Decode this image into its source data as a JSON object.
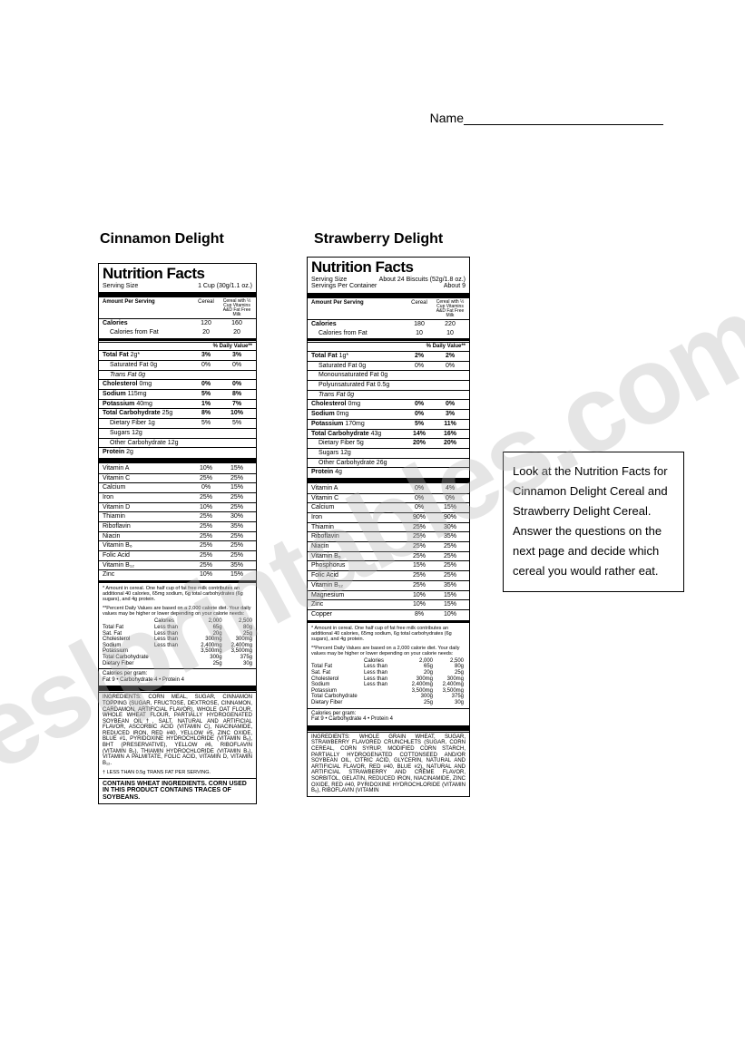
{
  "name_label": "Name",
  "titles": {
    "cinnamon": "Cinnamon Delight",
    "strawberry": "Strawberry Delight"
  },
  "watermark": "eslprintables.com",
  "instruction": "Look at the Nutrition Facts for Cinnamon Delight Cereal and Strawberry Delight Cereal.  Answer the questions on the next page and decide which cereal you would rather eat.",
  "nf_heading": "Nutrition Facts",
  "cinnamon": {
    "serving_size_label": "Serving Size",
    "serving_size": "1 Cup (30g/1.1 oz.)",
    "col_header": "Amount Per Serving",
    "col2": "Cereal",
    "col3": "Cereal with ½ Cup Vitamins A&D Fat Free Milk",
    "calories_label": "Calories",
    "calories_c": "120",
    "calories_m": "160",
    "calfat_label": "Calories from Fat",
    "calfat_c": "20",
    "calfat_m": "20",
    "dv_header": "% Daily Value**",
    "totalfat_label": "Total Fat",
    "totalfat_amt": "2g*",
    "totalfat_c": "3%",
    "totalfat_m": "3%",
    "satfat_label": "Saturated Fat 0g",
    "satfat_c": "0%",
    "satfat_m": "0%",
    "transfat_label": "Trans Fat 0g",
    "chol_label": "Cholesterol",
    "chol_amt": "0mg",
    "chol_c": "0%",
    "chol_m": "0%",
    "sodium_label": "Sodium",
    "sodium_amt": "115mg",
    "sodium_c": "5%",
    "sodium_m": "8%",
    "pot_label": "Potassium",
    "pot_amt": "40mg",
    "pot_c": "1%",
    "pot_m": "7%",
    "carb_label": "Total Carbohydrate",
    "carb_amt": "25g",
    "carb_c": "8%",
    "carb_m": "10%",
    "fiber_label": "Dietary Fiber 1g",
    "fiber_c": "5%",
    "fiber_m": "5%",
    "sugars_label": "Sugars 12g",
    "othercarb_label": "Other Carbohydrate 12g",
    "protein_label": "Protein",
    "protein_amt": "2g",
    "vitamins": [
      {
        "n": "Vitamin A",
        "c": "10%",
        "m": "15%"
      },
      {
        "n": "Vitamin C",
        "c": "25%",
        "m": "25%"
      },
      {
        "n": "Calcium",
        "c": "0%",
        "m": "15%"
      },
      {
        "n": "Iron",
        "c": "25%",
        "m": "25%"
      },
      {
        "n": "Vitamin D",
        "c": "10%",
        "m": "25%"
      },
      {
        "n": "Thiamin",
        "c": "25%",
        "m": "30%"
      },
      {
        "n": "Riboflavin",
        "c": "25%",
        "m": "35%"
      },
      {
        "n": "Niacin",
        "c": "25%",
        "m": "25%"
      },
      {
        "n": "Vitamin B₆",
        "c": "25%",
        "m": "25%"
      },
      {
        "n": "Folic Acid",
        "c": "25%",
        "m": "25%"
      },
      {
        "n": "Vitamin B₁₂",
        "c": "25%",
        "m": "35%"
      },
      {
        "n": "Zinc",
        "c": "10%",
        "m": "15%"
      }
    ],
    "note1": "* Amount in cereal. One half cup of fat free milk contributes an additional 40 calories, 65mg sodium, 6g total carbohydrates (6g sugars), and 4g protein.",
    "note2": "**Percent Daily Values are based on a 2,000 calorie diet. Your daily values may be higher or lower depending on your calorie needs:",
    "cal_table_hdr": {
      "c1": "",
      "c2": "Calories",
      "c3": "2,000",
      "c4": "2,500"
    },
    "cal_table": [
      {
        "c1": "Total Fat",
        "c2": "Less than",
        "c3": "65g",
        "c4": "80g"
      },
      {
        "c1": "Sat. Fat",
        "c2": "Less than",
        "c3": "20g",
        "c4": "25g"
      },
      {
        "c1": "Cholesterol",
        "c2": "Less than",
        "c3": "300mg",
        "c4": "300mg"
      },
      {
        "c1": "Sodium",
        "c2": "Less than",
        "c3": "2,400mg",
        "c4": "2,400mg"
      },
      {
        "c1": "Potassium",
        "c2": "",
        "c3": "3,500mg",
        "c4": "3,500mg"
      },
      {
        "c1": "Total Carbohydrate",
        "c2": "",
        "c3": "300g",
        "c4": "375g"
      },
      {
        "c1": "Dietary Fiber",
        "c2": "",
        "c3": "25g",
        "c4": "30g"
      }
    ],
    "cpg": "Calories per gram:\nFat 9 • Carbohydrate 4 • Protein 4",
    "ingredients": "INGREDIENTS: CORN MEAL, SUGAR, CINNAMON TOPPING (SUGAR, FRUCTOSE, DEXTROSE, CINNAMON, CARDAMON, ARTIFICIAL FLAVOR), WHOLE OAT FLOUR, WHOLE WHEAT FLOUR, PARTIALLY HYDROGENATED SOYBEAN OIL†, SALT, NATURAL AND ARTIFICIAL FLAVOR, ASCORBIC ACID (VITAMIN C), NIACINAMIDE, REDUCED IRON, RED #40, YELLOW #5, ZINC OXIDE, BLUE #1, PYRIDOXINE HYDROCHLORIDE (VITAMIN B₆), BHT (PRESERVATIVE), YELLOW #6, RIBOFLAVIN (VITAMIN B₂), THIAMIN HYDROCHLORIDE (VITAMIN B₁), VITAMIN A PALMITATE, FOLIC ACID, VITAMIN D, VITAMIN B₁₂.",
    "footnote": "† LESS THAN 0.5g TRANS FAT PER SERVING.",
    "contains": "CONTAINS WHEAT INGREDIENTS. CORN USED IN THIS PRODUCT CONTAINS TRACES OF SOYBEANS."
  },
  "strawberry": {
    "serving_size_label": "Serving Size",
    "serving_size": "About 24 Biscuits (52g/1.8 oz.)",
    "servings_per": "Servings Per Container",
    "servings_val": "About 9",
    "col_header": "Amount Per Serving",
    "col2": "Cereal",
    "col3": "Cereal with ½ Cup Vitamins A&D Fat Free Milk",
    "calories_label": "Calories",
    "calories_c": "180",
    "calories_m": "220",
    "calfat_label": "Calories from Fat",
    "calfat_c": "10",
    "calfat_m": "10",
    "dv_header": "% Daily Value**",
    "totalfat_label": "Total Fat",
    "totalfat_amt": "1g*",
    "totalfat_c": "2%",
    "totalfat_m": "2%",
    "satfat_label": "Saturated Fat 0g",
    "satfat_c": "0%",
    "satfat_m": "0%",
    "monofat_label": "Monounsaturated Fat 0g",
    "polyfat_label": "Polyunsaturated Fat 0.5g",
    "transfat_label": "Trans Fat 0g",
    "chol_label": "Cholesterol",
    "chol_amt": "0mg",
    "chol_c": "0%",
    "chol_m": "0%",
    "sodium_label": "Sodium",
    "sodium_amt": "0mg",
    "sodium_c": "0%",
    "sodium_m": "3%",
    "pot_label": "Potassium",
    "pot_amt": "170mg",
    "pot_c": "5%",
    "pot_m": "11%",
    "carb_label": "Total Carbohydrate",
    "carb_amt": "43g",
    "carb_c": "14%",
    "carb_m": "16%",
    "fiber_label": "Dietary Fiber 5g",
    "fiber_c": "20%",
    "fiber_m": "20%",
    "sugars_label": "Sugars 12g",
    "othercarb_label": "Other Carbohydrate 26g",
    "protein_label": "Protein",
    "protein_amt": "4g",
    "vitamins": [
      {
        "n": "Vitamin A",
        "c": "0%",
        "m": "4%"
      },
      {
        "n": "Vitamin C",
        "c": "0%",
        "m": "0%"
      },
      {
        "n": "Calcium",
        "c": "0%",
        "m": "15%"
      },
      {
        "n": "Iron",
        "c": "90%",
        "m": "90%"
      },
      {
        "n": "Thiamin",
        "c": "25%",
        "m": "30%"
      },
      {
        "n": "Riboflavin",
        "c": "25%",
        "m": "35%"
      },
      {
        "n": "Niacin",
        "c": "25%",
        "m": "25%"
      },
      {
        "n": "Vitamin B₆",
        "c": "25%",
        "m": "25%"
      },
      {
        "n": "Phosphorus",
        "c": "15%",
        "m": "25%"
      },
      {
        "n": "Folic Acid",
        "c": "25%",
        "m": "25%"
      },
      {
        "n": "Vitamin B₁₂",
        "c": "25%",
        "m": "35%"
      },
      {
        "n": "Magnesium",
        "c": "10%",
        "m": "15%"
      },
      {
        "n": "Zinc",
        "c": "10%",
        "m": "15%"
      },
      {
        "n": "Copper",
        "c": "8%",
        "m": "10%"
      }
    ],
    "note1": "* Amount in cereal. One half cup of fat free milk contributes an additional 40 calories, 65mg sodium, 6g total carbohydrates (6g sugars), and 4g protein.",
    "note2": "**Percent Daily Values are based on a 2,000 calorie diet. Your daily values may be higher or lower depending on your calorie needs:",
    "cal_table_hdr": {
      "c1": "",
      "c2": "Calories",
      "c3": "2,000",
      "c4": "2,500"
    },
    "cal_table": [
      {
        "c1": "Total Fat",
        "c2": "Less than",
        "c3": "65g",
        "c4": "80g"
      },
      {
        "c1": "Sat. Fat",
        "c2": "Less than",
        "c3": "20g",
        "c4": "25g"
      },
      {
        "c1": "Cholesterol",
        "c2": "Less than",
        "c3": "300mg",
        "c4": "300mg"
      },
      {
        "c1": "Sodium",
        "c2": "Less than",
        "c3": "2,400mg",
        "c4": "2,400mg"
      },
      {
        "c1": "Potassium",
        "c2": "",
        "c3": "3,500mg",
        "c4": "3,500mg"
      },
      {
        "c1": "Total Carbohydrate",
        "c2": "",
        "c3": "300g",
        "c4": "375g"
      },
      {
        "c1": "Dietary Fiber",
        "c2": "",
        "c3": "25g",
        "c4": "30g"
      }
    ],
    "cpg": "Calories per gram:\nFat 9 • Carbohydrate 4 • Protein 4",
    "ingredients": "INGREDIENTS: WHOLE GRAIN WHEAT, SUGAR, STRAWBERRY FLAVORED CRUNCHLETS (SUGAR, CORN CEREAL, CORN SYRUP, MODIFIED CORN STARCH, PARTIALLY HYDROGENATED COTTONSEED AND/OR SOYBEAN OIL, CITRIC ACID, GLYCERIN, NATURAL AND ARTIFICIAL FLAVOR, RED #40, BLUE #2), NATURAL AND ARTIFICIAL STRAWBERRY AND CRÈME FLAVOR, SORBITOL, GELATIN, REDUCED IRON, NIACINAMIDE, ZINC OXIDE, RED #40, PYRIDOXINE HYDROCHLORIDE (VITAMIN B₆), RIBOFLAVIN (VITAMIN"
  }
}
